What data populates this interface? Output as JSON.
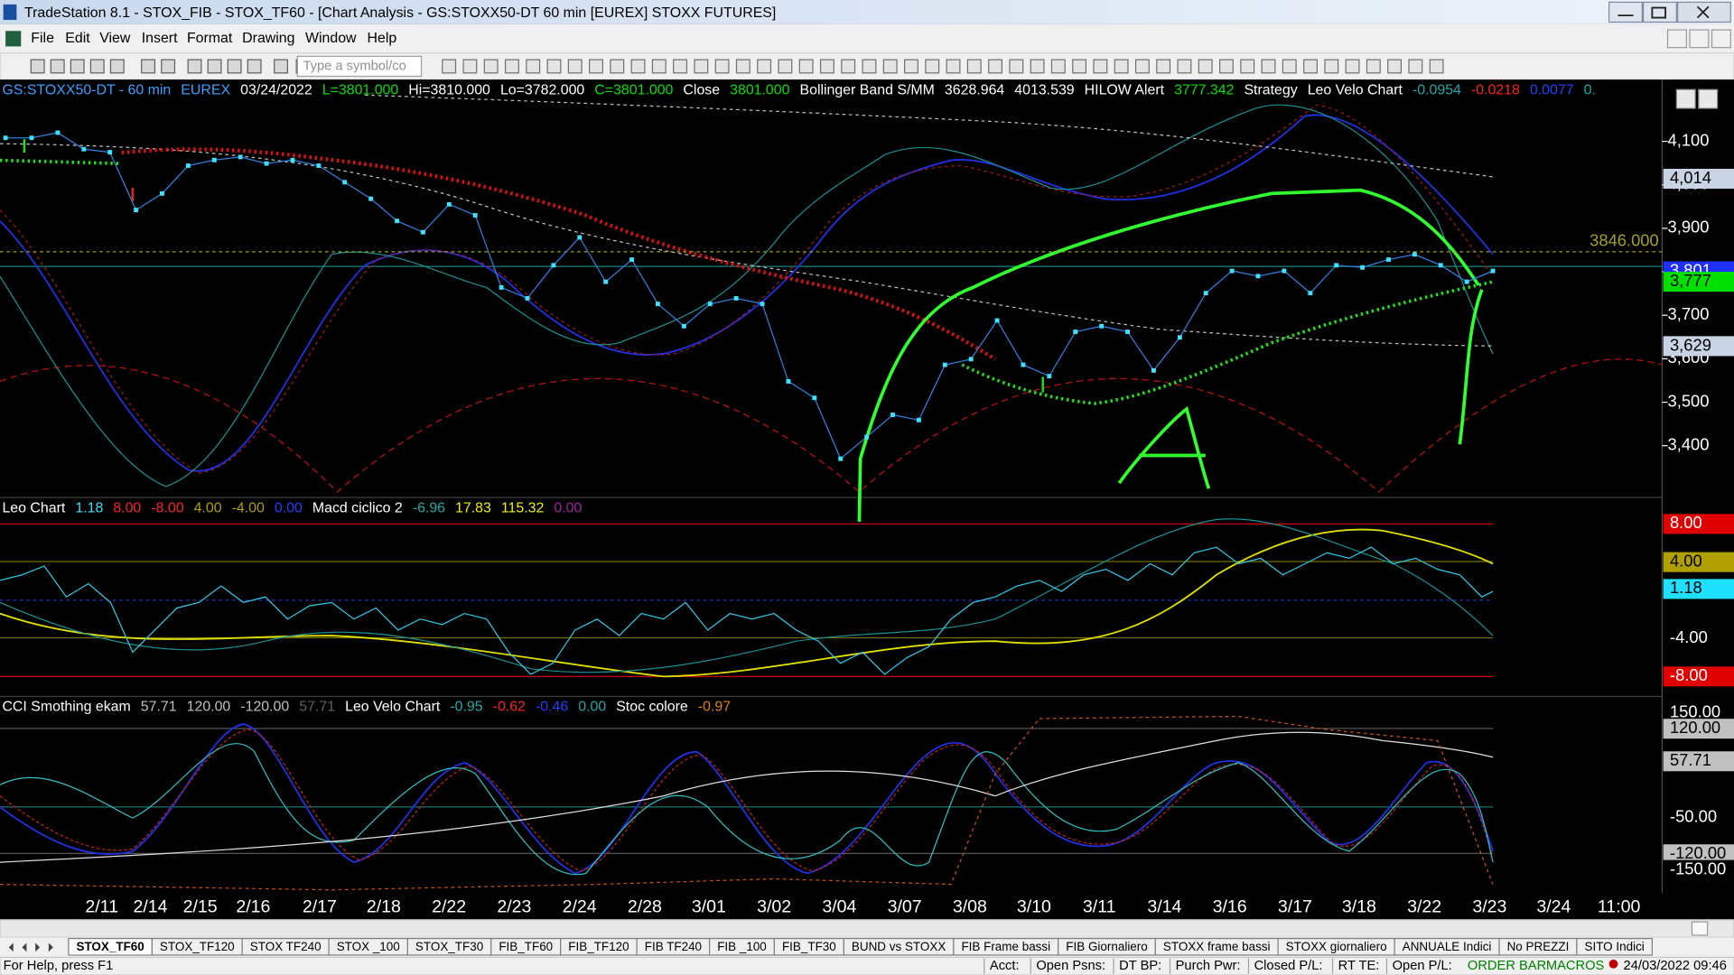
{
  "window": {
    "title": "TradeStation 8.1 - STOX_FIB - STOX_TF60 - [Chart Analysis - GS:STOXX50-DT  60 min  [EUREX] STOXX FUTURES]"
  },
  "menu": [
    "File",
    "Edit",
    "View",
    "Insert",
    "Format",
    "Drawing",
    "Window",
    "Help"
  ],
  "toolbar": {
    "symbol_box": "Type a symbol/co"
  },
  "price_pane": {
    "header": [
      {
        "text": "GS:STOXX50-DT - 60 min",
        "color": "#3aa0ff"
      },
      {
        "text": "EUREX",
        "color": "#3aa0ff"
      },
      {
        "text": "03/24/2022",
        "color": "#ffffff"
      },
      {
        "text": "L=3801.000",
        "color": "#00e000"
      },
      {
        "text": "Hi=3810.000",
        "color": "#ffffff"
      },
      {
        "text": "Lo=3782.000",
        "color": "#ffffff"
      },
      {
        "text": "C=3801.000",
        "color": "#00e000"
      },
      {
        "text": "Close",
        "color": "#ffffff"
      },
      {
        "text": "3801.000",
        "color": "#00e000"
      },
      {
        "text": "Bollinger Band S/MM",
        "color": "#ffffff"
      },
      {
        "text": "3628.964",
        "color": "#ffffff"
      },
      {
        "text": "4013.539",
        "color": "#ffffff"
      },
      {
        "text": "HILOW Alert",
        "color": "#ffffff"
      },
      {
        "text": "3777.342",
        "color": "#00e000"
      },
      {
        "text": "Strategy",
        "color": "#ffffff"
      },
      {
        "text": "Leo Velo Chart",
        "color": "#ffffff"
      },
      {
        "text": "-0.0954",
        "color": "#20a8a8"
      },
      {
        "text": "-0.0218",
        "color": "#ff2020"
      },
      {
        "text": "0.0077",
        "color": "#2040ff"
      },
      {
        "text": "0.",
        "color": "#20a8a8"
      }
    ],
    "ylim": [
      3281,
      4242
    ],
    "yticks": [
      {
        "value": 3400,
        "label": "3,400"
      },
      {
        "value": 3500,
        "label": "3,500"
      },
      {
        "value": 3600,
        "label": "3,600"
      },
      {
        "value": 3700,
        "label": "3,700"
      },
      {
        "value": 3800,
        "label": "3,800"
      },
      {
        "value": 3900,
        "label": "3,900"
      },
      {
        "value": 4000,
        "label": "4,000"
      },
      {
        "value": 4100,
        "label": "4,100"
      }
    ],
    "markers": [
      {
        "value": 4014,
        "label": "4,014",
        "bg": "#c8d4e4",
        "fg": "#000000"
      },
      {
        "value": 3801,
        "label": "3,801",
        "bg": "#2030ff",
        "fg": "#ffffff"
      },
      {
        "value": 3777,
        "label": "3,777",
        "bg": "#00e000",
        "fg": "#000000"
      },
      {
        "value": 3629,
        "label": "3,629",
        "bg": "#c8d4e4",
        "fg": "#000000"
      }
    ],
    "level": {
      "value": 3846,
      "label": "3846.000",
      "color": "#a0a020"
    },
    "close_color": "#40e0ff",
    "close": [
      4108,
      4108,
      4120,
      4082,
      4075,
      3942,
      3980,
      4044,
      4057,
      4064,
      4049,
      4057,
      4044,
      4006,
      3968,
      3917,
      3891,
      3955,
      3930,
      3764,
      3739,
      3815,
      3879,
      3777,
      3828,
      3726,
      3675,
      3726,
      3739,
      3726,
      3548,
      3510,
      3370,
      3420,
      3471,
      3459,
      3586,
      3599,
      3688,
      3586,
      3560,
      3662,
      3675,
      3662,
      3573,
      3649,
      3751,
      3802,
      3790,
      3802,
      3751,
      3815,
      3810,
      3828,
      3840,
      3815,
      3777,
      3802
    ]
  },
  "leo_pane": {
    "header": [
      {
        "text": "Leo Chart",
        "color": "#ffffff"
      },
      {
        "text": "1.18",
        "color": "#40e0ff"
      },
      {
        "text": "8.00",
        "color": "#ff2020"
      },
      {
        "text": "-8.00",
        "color": "#ff2020"
      },
      {
        "text": "4.00",
        "color": "#b0a000"
      },
      {
        "text": "-4.00",
        "color": "#b0a000"
      },
      {
        "text": "0.00",
        "color": "#2040ff"
      },
      {
        "text": "Macd ciclico 2",
        "color": "#ffffff"
      },
      {
        "text": "-6.96",
        "color": "#20a8a8"
      },
      {
        "text": "17.83",
        "color": "#f0f000"
      },
      {
        "text": "115.32",
        "color": "#f0f000"
      },
      {
        "text": "0.00",
        "color": "#a020a0"
      }
    ],
    "ylim": [
      -10.09,
      10.78
    ],
    "markers": [
      {
        "value": 8,
        "label": "8.00",
        "bg": "#e00000",
        "fg": "#ffffff"
      },
      {
        "value": 4,
        "label": "4.00",
        "bg": "#b0a000",
        "fg": "#000000"
      },
      {
        "value": 1.18,
        "label": "1.18",
        "bg": "#20e0ff",
        "fg": "#000000"
      },
      {
        "value": -4,
        "label": "-4.00",
        "bg": "#000000",
        "fg": "#ffffff"
      },
      {
        "value": -8,
        "label": "-8.00",
        "bg": "#e00000",
        "fg": "#ffffff"
      }
    ]
  },
  "cci_pane": {
    "header": [
      {
        "text": "CCI Smothing ekam",
        "color": "#ffffff"
      },
      {
        "text": "57.71",
        "color": "#c0c0c0"
      },
      {
        "text": "120.00",
        "color": "#c0c0c0"
      },
      {
        "text": "-120.00",
        "color": "#c0c0c0"
      },
      {
        "text": "57.71",
        "color": "#606060"
      },
      {
        "text": "Leo Velo Chart",
        "color": "#ffffff"
      },
      {
        "text": "-0.95",
        "color": "#20a8a8"
      },
      {
        "text": "-0.62",
        "color": "#ff2020"
      },
      {
        "text": "-0.46",
        "color": "#2040ff"
      },
      {
        "text": "0.00",
        "color": "#20a8a8"
      },
      {
        "text": "Stoc colore",
        "color": "#ffffff"
      },
      {
        "text": "-0.97",
        "color": "#e08000"
      }
    ],
    "ylim": [
      -194.4,
      181.7
    ],
    "markers": [
      {
        "value": 150,
        "label": "150.00",
        "bg": "#000000",
        "fg": "#ffffff"
      },
      {
        "value": 120,
        "label": "120.00",
        "bg": "#c0c0c0",
        "fg": "#000000"
      },
      {
        "value": 57.71,
        "label": "57.71",
        "bg": "#c0c0c0",
        "fg": "#000000"
      },
      {
        "value": -50,
        "label": "-50.00",
        "bg": "#000000",
        "fg": "#ffffff"
      },
      {
        "value": -120,
        "label": "-120.00",
        "bg": "#c0c0c0",
        "fg": "#000000"
      },
      {
        "value": -150,
        "label": "-150.00",
        "bg": "#000000",
        "fg": "#ffffff"
      }
    ]
  },
  "x_labels": [
    "2/11",
    "2/14",
    "2/15",
    "2/16",
    "2/17",
    "2/18",
    "2/22",
    "2/23",
    "2/24",
    "2/28",
    "3/01",
    "3/02",
    "3/04",
    "3/07",
    "3/08",
    "3/10",
    "3/11",
    "3/14",
    "3/16",
    "3/17",
    "3/18",
    "3/22",
    "3/23",
    "3/24",
    "11:00"
  ],
  "annotation": "A",
  "tabs": [
    "STOX_TF60",
    "STOX_TF120",
    "STOX TF240",
    "STOX _100",
    "STOX_TF30",
    "FIB_TF60",
    "FIB_TF120",
    "FIB TF240",
    "FIB _100",
    "FIB_TF30",
    "BUND vs STOXX",
    "FIB Frame bassi",
    "FIB Giornaliero",
    "STOXX frame bassi",
    "STOXX giornaliero",
    "ANNUALE Indici",
    "No PREZZI",
    "SITO Indici"
  ],
  "status": {
    "help": "For Help, press F1",
    "fields": [
      "Acct:",
      "Open Psns:",
      "DT BP:",
      "Purch Pwr:",
      "Closed P/L:",
      "RT TE:",
      "Open P/L:"
    ],
    "order_bar": "ORDER BAR",
    "macros": "MACROS",
    "datetime": "24/03/2022 09:46"
  }
}
